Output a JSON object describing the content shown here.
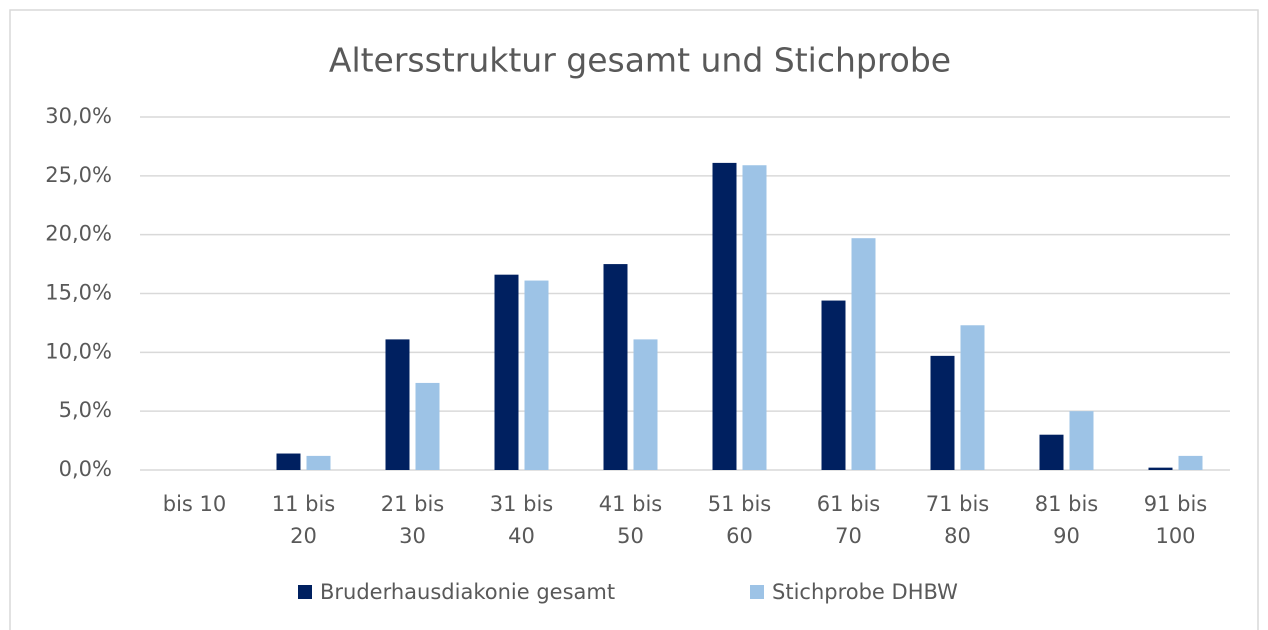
{
  "chart_data": {
    "type": "bar",
    "title": "Altersstruktur gesamt und Stichprobe",
    "categories": [
      "bis 10",
      "11 bis 20",
      "21 bis 30",
      "31 bis 40",
      "41 bis 50",
      "51 bis 60",
      "61 bis 70",
      "71 bis 80",
      "81 bis 90",
      "91 bis 100"
    ],
    "series": [
      {
        "name": "Bruderhausdiakonie gesamt",
        "color": "#002060",
        "values": [
          0,
          1.4,
          11.1,
          16.6,
          17.5,
          26.1,
          14.4,
          9.7,
          3.0,
          0.2
        ]
      },
      {
        "name": "Stichprobe DHBW",
        "color": "#9dc3e6",
        "values": [
          0,
          1.2,
          7.4,
          16.1,
          11.1,
          25.9,
          19.7,
          12.3,
          5.0,
          1.2
        ]
      }
    ],
    "ylim": [
      0,
      30
    ],
    "yticks": [
      {
        "value": 0,
        "label": "0,0%"
      },
      {
        "value": 5,
        "label": "5,0%"
      },
      {
        "value": 10,
        "label": "10,0%"
      },
      {
        "value": 15,
        "label": "15,0%"
      },
      {
        "value": 20,
        "label": "20,0%"
      },
      {
        "value": 25,
        "label": "25,0%"
      },
      {
        "value": 30,
        "label": "30,0%"
      }
    ],
    "grid": true,
    "legend": "bottom"
  }
}
